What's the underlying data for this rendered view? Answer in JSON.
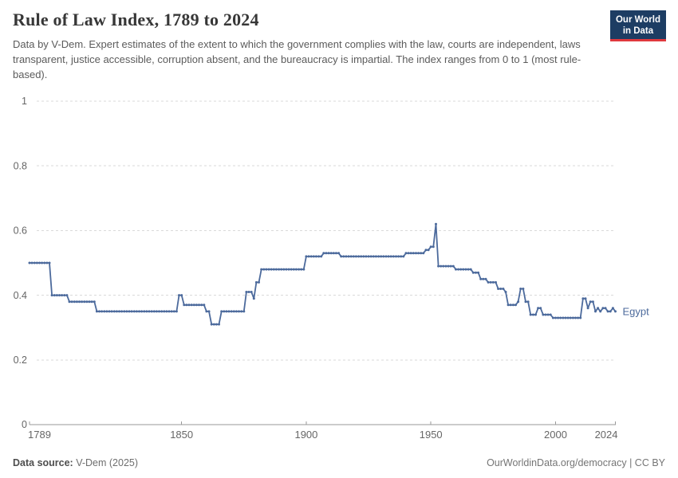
{
  "header": {
    "title": "Rule of Law Index, 1789 to 2024",
    "subtitle": "Data by V-Dem. Expert estimates of the extent to which the government complies with the law, courts are independent, laws transparent, justice accessible, corruption absent, and the bureaucracy is impartial. The index ranges from 0 to 1 (most rule-based).",
    "logo": {
      "line1": "Our World",
      "line2": "in Data"
    }
  },
  "footer": {
    "source_label": "Data source:",
    "source_value": " V-Dem (2025)",
    "right_text": "OurWorldinData.org/democracy | CC BY"
  },
  "colors": {
    "line": "#4c6a9c",
    "grid": "#d9d9d9",
    "axis": "#999999",
    "tick_label": "#666666",
    "logo_bg": "#1d3d63",
    "logo_red": "#e0393e"
  },
  "chart_data": {
    "type": "line",
    "title": "Rule of Law Index, 1789 to 2024",
    "xlabel": "",
    "ylabel": "",
    "x_range": [
      1789,
      2024
    ],
    "y_range": [
      0,
      1
    ],
    "grid": "horizontal-dashed",
    "legend_position": "end-of-line-label",
    "series_label": "Egypt",
    "x_ticks": [
      {
        "year": 1789,
        "label": "1789",
        "anchor": "start"
      },
      {
        "year": 1850,
        "label": "1850",
        "anchor": "middle"
      },
      {
        "year": 1900,
        "label": "1900",
        "anchor": "middle"
      },
      {
        "year": 1950,
        "label": "1950",
        "anchor": "middle"
      },
      {
        "year": 2000,
        "label": "2000",
        "anchor": "middle"
      },
      {
        "year": 2024,
        "label": "2024",
        "anchor": "end"
      }
    ],
    "y_ticks": [
      {
        "value": 0,
        "label": "0"
      },
      {
        "value": 0.2,
        "label": "0.2"
      },
      {
        "value": 0.4,
        "label": "0.4"
      },
      {
        "value": 0.6,
        "label": "0.6"
      },
      {
        "value": 0.8,
        "label": "0.8"
      },
      {
        "value": 1,
        "label": "1"
      }
    ],
    "series": [
      {
        "name": "Egypt",
        "segments": [
          {
            "from": 1789,
            "to": 1797,
            "value": 0.5
          },
          {
            "from": 1798,
            "to": 1804,
            "value": 0.4
          },
          {
            "from": 1805,
            "to": 1815,
            "value": 0.38
          },
          {
            "from": 1816,
            "to": 1848,
            "value": 0.35
          },
          {
            "from": 1849,
            "to": 1850,
            "value": 0.4
          },
          {
            "from": 1851,
            "to": 1859,
            "value": 0.37
          },
          {
            "from": 1860,
            "to": 1861,
            "value": 0.35
          },
          {
            "from": 1862,
            "to": 1865,
            "value": 0.31
          },
          {
            "from": 1866,
            "to": 1875,
            "value": 0.35
          },
          {
            "from": 1876,
            "to": 1878,
            "value": 0.41
          },
          {
            "from": 1879,
            "to": 1879,
            "value": 0.39
          },
          {
            "from": 1880,
            "to": 1881,
            "value": 0.44
          },
          {
            "from": 1882,
            "to": 1899,
            "value": 0.48
          },
          {
            "from": 1900,
            "to": 1906,
            "value": 0.52
          },
          {
            "from": 1907,
            "to": 1913,
            "value": 0.53
          },
          {
            "from": 1914,
            "to": 1939,
            "value": 0.52
          },
          {
            "from": 1940,
            "to": 1947,
            "value": 0.53
          },
          {
            "from": 1948,
            "to": 1949,
            "value": 0.54
          },
          {
            "from": 1950,
            "to": 1951,
            "value": 0.55
          },
          {
            "from": 1952,
            "to": 1952,
            "value": 0.62
          },
          {
            "from": 1953,
            "to": 1959,
            "value": 0.49
          },
          {
            "from": 1960,
            "to": 1966,
            "value": 0.48
          },
          {
            "from": 1967,
            "to": 1969,
            "value": 0.47
          },
          {
            "from": 1970,
            "to": 1972,
            "value": 0.45
          },
          {
            "from": 1973,
            "to": 1976,
            "value": 0.44
          },
          {
            "from": 1977,
            "to": 1979,
            "value": 0.42
          },
          {
            "from": 1980,
            "to": 1980,
            "value": 0.41
          },
          {
            "from": 1981,
            "to": 1984,
            "value": 0.37
          },
          {
            "from": 1985,
            "to": 1985,
            "value": 0.38
          },
          {
            "from": 1986,
            "to": 1987,
            "value": 0.42
          },
          {
            "from": 1988,
            "to": 1989,
            "value": 0.38
          },
          {
            "from": 1990,
            "to": 1992,
            "value": 0.34
          },
          {
            "from": 1993,
            "to": 1994,
            "value": 0.36
          },
          {
            "from": 1995,
            "to": 1998,
            "value": 0.34
          },
          {
            "from": 1999,
            "to": 2010,
            "value": 0.33
          },
          {
            "from": 2011,
            "to": 2012,
            "value": 0.39
          },
          {
            "from": 2013,
            "to": 2013,
            "value": 0.36
          },
          {
            "from": 2014,
            "to": 2015,
            "value": 0.38
          },
          {
            "from": 2016,
            "to": 2016,
            "value": 0.35
          },
          {
            "from": 2017,
            "to": 2017,
            "value": 0.36
          },
          {
            "from": 2018,
            "to": 2018,
            "value": 0.35
          },
          {
            "from": 2019,
            "to": 2020,
            "value": 0.36
          },
          {
            "from": 2021,
            "to": 2022,
            "value": 0.35
          },
          {
            "from": 2023,
            "to": 2023,
            "value": 0.36
          },
          {
            "from": 2024,
            "to": 2024,
            "value": 0.35
          }
        ]
      }
    ]
  }
}
